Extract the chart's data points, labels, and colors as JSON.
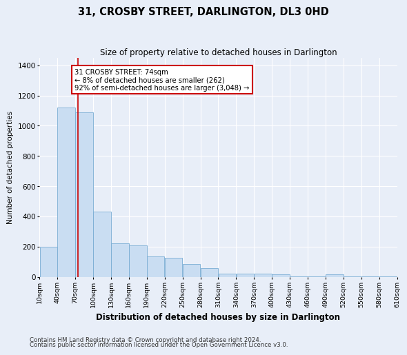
{
  "title": "31, CROSBY STREET, DARLINGTON, DL3 0HD",
  "subtitle": "Size of property relative to detached houses in Darlington",
  "xlabel": "Distribution of detached houses by size in Darlington",
  "ylabel": "Number of detached properties",
  "bar_color": "#c9ddf2",
  "bar_edge_color": "#7aadd4",
  "background_color": "#e8eef8",
  "fig_background_color": "#e8eef8",
  "grid_color": "#ffffff",
  "property_line_x": 74,
  "property_label": "31 CROSBY STREET: 74sqm",
  "annotation_line1": "← 8% of detached houses are smaller (262)",
  "annotation_line2": "92% of semi-detached houses are larger (3,048) →",
  "annotation_box_color": "#ffffff",
  "annotation_box_edge": "#cc0000",
  "annotation_text_color": "#000000",
  "property_line_color": "#cc0000",
  "bin_edges": [
    10,
    40,
    70,
    100,
    130,
    160,
    190,
    220,
    250,
    280,
    310,
    340,
    370,
    400,
    430,
    460,
    490,
    520,
    550,
    580,
    610
  ],
  "bar_heights": [
    200,
    1120,
    1090,
    430,
    220,
    210,
    135,
    125,
    85,
    60,
    20,
    20,
    20,
    18,
    5,
    5,
    18,
    3,
    3,
    3
  ],
  "tick_labels": [
    "10sqm",
    "40sqm",
    "70sqm",
    "100sqm",
    "130sqm",
    "160sqm",
    "190sqm",
    "220sqm",
    "250sqm",
    "280sqm",
    "310sqm",
    "340sqm",
    "370sqm",
    "400sqm",
    "430sqm",
    "460sqm",
    "490sqm",
    "520sqm",
    "550sqm",
    "580sqm",
    "610sqm"
  ],
  "ylim": [
    0,
    1450
  ],
  "yticks": [
    0,
    200,
    400,
    600,
    800,
    1000,
    1200,
    1400
  ],
  "footnote1": "Contains HM Land Registry data © Crown copyright and database right 2024.",
  "footnote2": "Contains public sector information licensed under the Open Government Licence v3.0."
}
